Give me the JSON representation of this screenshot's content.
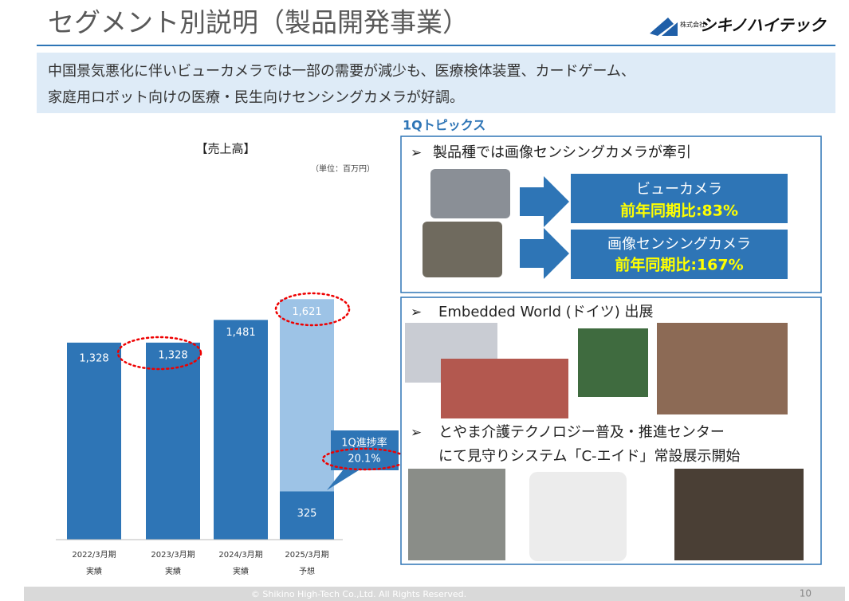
{
  "header": {
    "title": "セグメント別説明（製品開発事業）",
    "logo_small": "株式会社",
    "logo": "シキノハイテック"
  },
  "summary": [
    "中国景気悪化に伴いビューカメラでは一部の需要が減少も、医療検体装置、カードゲーム、",
    "家庭用ロボット向けの医療・民生向けセンシングカメラが好調。"
  ],
  "chart_data": {
    "type": "bar",
    "title": "【売上高】",
    "unit": "（単位：百万円）",
    "categories": [
      "2022/3月期",
      "2023/3月期",
      "2024/3月期",
      "2025/3月期"
    ],
    "category_sublabels": [
      "実績",
      "実績",
      "実績",
      "予想"
    ],
    "values": [
      1328,
      1328,
      1481,
      1621
    ],
    "value_labels": [
      "1,328",
      "1,328",
      "1,481",
      "1,621"
    ],
    "colors": [
      "#2e75b6",
      "#2e75b6",
      "#2e75b6",
      "#9dc3e6"
    ],
    "q1_actual": 325,
    "q1_actual_color": "#2e75b6",
    "callout_title": "1Q進捗率",
    "callout_value": 20.1,
    "callout_value_label": "20.1%",
    "ylim": [
      0,
      1800
    ]
  },
  "topics": {
    "heading": "1Qトピックス",
    "box1": {
      "bullet": "製品種では画像センシングカメラが牽引",
      "items": [
        {
          "name": "ビューカメラ",
          "growth": "前年同期比:83%"
        },
        {
          "name": "画像センシングカメラ",
          "growth": "前年同期比:167%"
        }
      ]
    },
    "box2": {
      "bullet1": "Embedded World (ドイツ) 出展",
      "bullet2": [
        "とやま介護テクノロジー普及・推進センター",
        "にて見守りシステム「C-エイド」常設展示開始"
      ]
    }
  },
  "footer": {
    "copyright": "© Shikino High-Tech Co.,Ltd. All Rights Reserved.",
    "page": "10"
  }
}
